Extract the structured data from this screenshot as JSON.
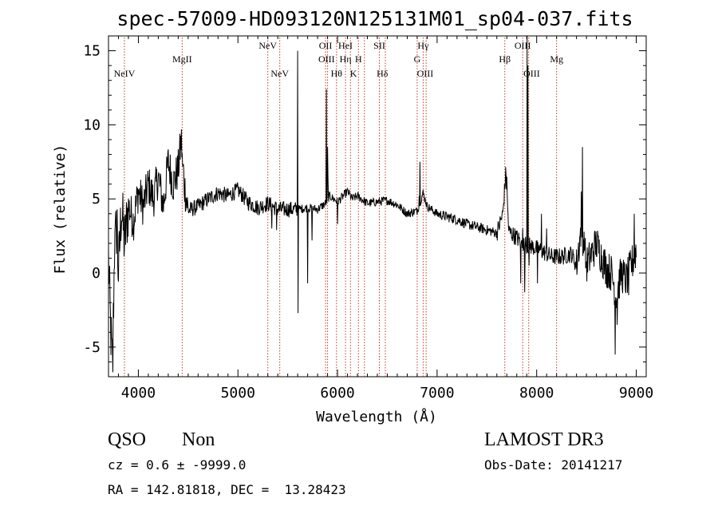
{
  "chart_data": {
    "type": "line",
    "title": "spec-57009-HD093120N125131M01_sp04-037.fits",
    "xlabel": "Wavelength (Å)",
    "ylabel": "Flux (relative)",
    "xlim": [
      3700,
      9100
    ],
    "ylim": [
      -7,
      16
    ],
    "x_ticks": [
      4000,
      5000,
      6000,
      7000,
      8000,
      9000
    ],
    "y_ticks": [
      -5,
      0,
      5,
      10,
      15
    ],
    "grid": false,
    "line_color": "#000000",
    "marker_color": "#c0392b",
    "series_anchors": [
      [
        3700,
        1
      ],
      [
        3720,
        -3.5
      ],
      [
        3740,
        -6.5
      ],
      [
        3760,
        1.5
      ],
      [
        3780,
        3
      ],
      [
        3800,
        0
      ],
      [
        3830,
        4.5
      ],
      [
        3860,
        2
      ],
      [
        3900,
        4.5
      ],
      [
        3950,
        3.5
      ],
      [
        4000,
        5.5
      ],
      [
        4050,
        4.5
      ],
      [
        4100,
        6
      ],
      [
        4150,
        5
      ],
      [
        4200,
        6.5
      ],
      [
        4250,
        4.5
      ],
      [
        4300,
        7.5
      ],
      [
        4350,
        6
      ],
      [
        4400,
        7
      ],
      [
        4430,
        9
      ],
      [
        4460,
        6
      ],
      [
        4500,
        4.2
      ],
      [
        4600,
        4.5
      ],
      [
        4700,
        5
      ],
      [
        4800,
        5.4
      ],
      [
        4900,
        5.2
      ],
      [
        5000,
        5.6
      ],
      [
        5100,
        4.8
      ],
      [
        5200,
        4.4
      ],
      [
        5300,
        4.7
      ],
      [
        5400,
        4.3
      ],
      [
        5500,
        4.3
      ],
      [
        5600,
        4.3
      ],
      [
        5700,
        4.4
      ],
      [
        5800,
        4.3
      ],
      [
        5880,
        4.7
      ],
      [
        5920,
        5.2
      ],
      [
        6000,
        4.8
      ],
      [
        6100,
        5.5
      ],
      [
        6150,
        5.0
      ],
      [
        6200,
        5.2
      ],
      [
        6300,
        4.7
      ],
      [
        6400,
        4.8
      ],
      [
        6500,
        4.9
      ],
      [
        6600,
        4.6
      ],
      [
        6700,
        4.0
      ],
      [
        6800,
        4.2
      ],
      [
        6860,
        5.4
      ],
      [
        6900,
        4.5
      ],
      [
        7000,
        4.0
      ],
      [
        7100,
        3.8
      ],
      [
        7200,
        3.6
      ],
      [
        7300,
        3.3
      ],
      [
        7400,
        3.1
      ],
      [
        7500,
        2.9
      ],
      [
        7600,
        2.7
      ],
      [
        7660,
        4.0
      ],
      [
        7690,
        6.8
      ],
      [
        7720,
        2.8
      ],
      [
        7800,
        2.4
      ],
      [
        7850,
        2.0
      ],
      [
        7950,
        1.8
      ],
      [
        8050,
        1.5
      ],
      [
        8150,
        1.1
      ],
      [
        8250,
        1.1
      ],
      [
        8350,
        1.3
      ],
      [
        8400,
        0.5
      ],
      [
        8450,
        3.2
      ],
      [
        8500,
        0.5
      ],
      [
        8600,
        2.0
      ],
      [
        8700,
        0.3
      ],
      [
        8750,
        0.0
      ],
      [
        8800,
        -1.5
      ],
      [
        8850,
        0.0
      ],
      [
        8900,
        -0.5
      ],
      [
        8950,
        0.5
      ],
      [
        9000,
        1.5
      ]
    ],
    "series_spikes": [
      [
        3745,
        -6.7
      ],
      [
        3765,
        2.8
      ],
      [
        3790,
        4.3
      ],
      [
        4445,
        7.2
      ],
      [
        5340,
        3.0
      ],
      [
        5390,
        2.9
      ],
      [
        5600,
        15.0
      ],
      [
        5605,
        -2.7
      ],
      [
        5700,
        -0.7
      ],
      [
        5745,
        2.2
      ],
      [
        5890,
        12.4
      ],
      [
        5900,
        8.5
      ],
      [
        5905,
        6.5
      ],
      [
        6830,
        7.5
      ],
      [
        6820,
        5.2
      ],
      [
        6000,
        3.3
      ],
      [
        7700,
        6.5
      ],
      [
        7840,
        -0.7
      ],
      [
        7860,
        3.0
      ],
      [
        7880,
        -1.3
      ],
      [
        7905,
        16.0
      ],
      [
        7912,
        14.0
      ],
      [
        7925,
        0.5
      ],
      [
        8010,
        -0.7
      ],
      [
        8050,
        4.0
      ],
      [
        8100,
        3.0
      ],
      [
        8450,
        5.5
      ],
      [
        8460,
        8.5
      ],
      [
        8480,
        1.5
      ],
      [
        8790,
        -5.5
      ],
      [
        8810,
        -3.5
      ],
      [
        8925,
        -1.5
      ],
      [
        8980,
        4.0
      ]
    ],
    "annotations": [
      {
        "label": "NeIV",
        "x": 3860,
        "row": 2
      },
      {
        "label": "MgII",
        "x": 4440,
        "row": 1
      },
      {
        "label": "NeV",
        "x": 5300,
        "row": 0
      },
      {
        "label": "NeV",
        "x": 5420,
        "row": 2
      },
      {
        "label": "OII",
        "x": 5880,
        "row": 0
      },
      {
        "label": "OIII",
        "x": 5890,
        "row": 1
      },
      {
        "label": "Hθ",
        "x": 5990,
        "row": 2
      },
      {
        "label": "HeI",
        "x": 6080,
        "row": 0
      },
      {
        "label": "Hη",
        "x": 6080,
        "row": 1
      },
      {
        "label": "K",
        "x": 6160,
        "row": 2
      },
      {
        "label": "H",
        "x": 6210,
        "row": 1
      },
      {
        "label": "SII",
        "x": 6420,
        "row": 0
      },
      {
        "label": "Hδ",
        "x": 6450,
        "row": 2
      },
      {
        "label": "Hγ",
        "x": 6860,
        "row": 0
      },
      {
        "label": "G",
        "x": 6800,
        "row": 1
      },
      {
        "label": "OIII",
        "x": 6880,
        "row": 2
      },
      {
        "label": "Hβ",
        "x": 7680,
        "row": 1
      },
      {
        "label": "OIII",
        "x": 7860,
        "row": 0
      },
      {
        "label": "OIII",
        "x": 7950,
        "row": 2
      },
      {
        "label": "Mg",
        "x": 8200,
        "row": 1
      }
    ],
    "marker_lines": [
      3860,
      4440,
      5300,
      5420,
      5880,
      5900,
      5990,
      6080,
      6130,
      6210,
      6270,
      6420,
      6480,
      6800,
      6860,
      6890,
      7680,
      7860,
      7920,
      8200
    ]
  },
  "footer": {
    "class_label": "QSO",
    "subclass_label": "Non",
    "cz_line": "cz = 0.6 ± -9999.0",
    "radec_line": "RA = 142.81818, DEC =  13.28423",
    "survey": "LAMOST DR3",
    "obs_date": "Obs-Date: 20141217"
  }
}
